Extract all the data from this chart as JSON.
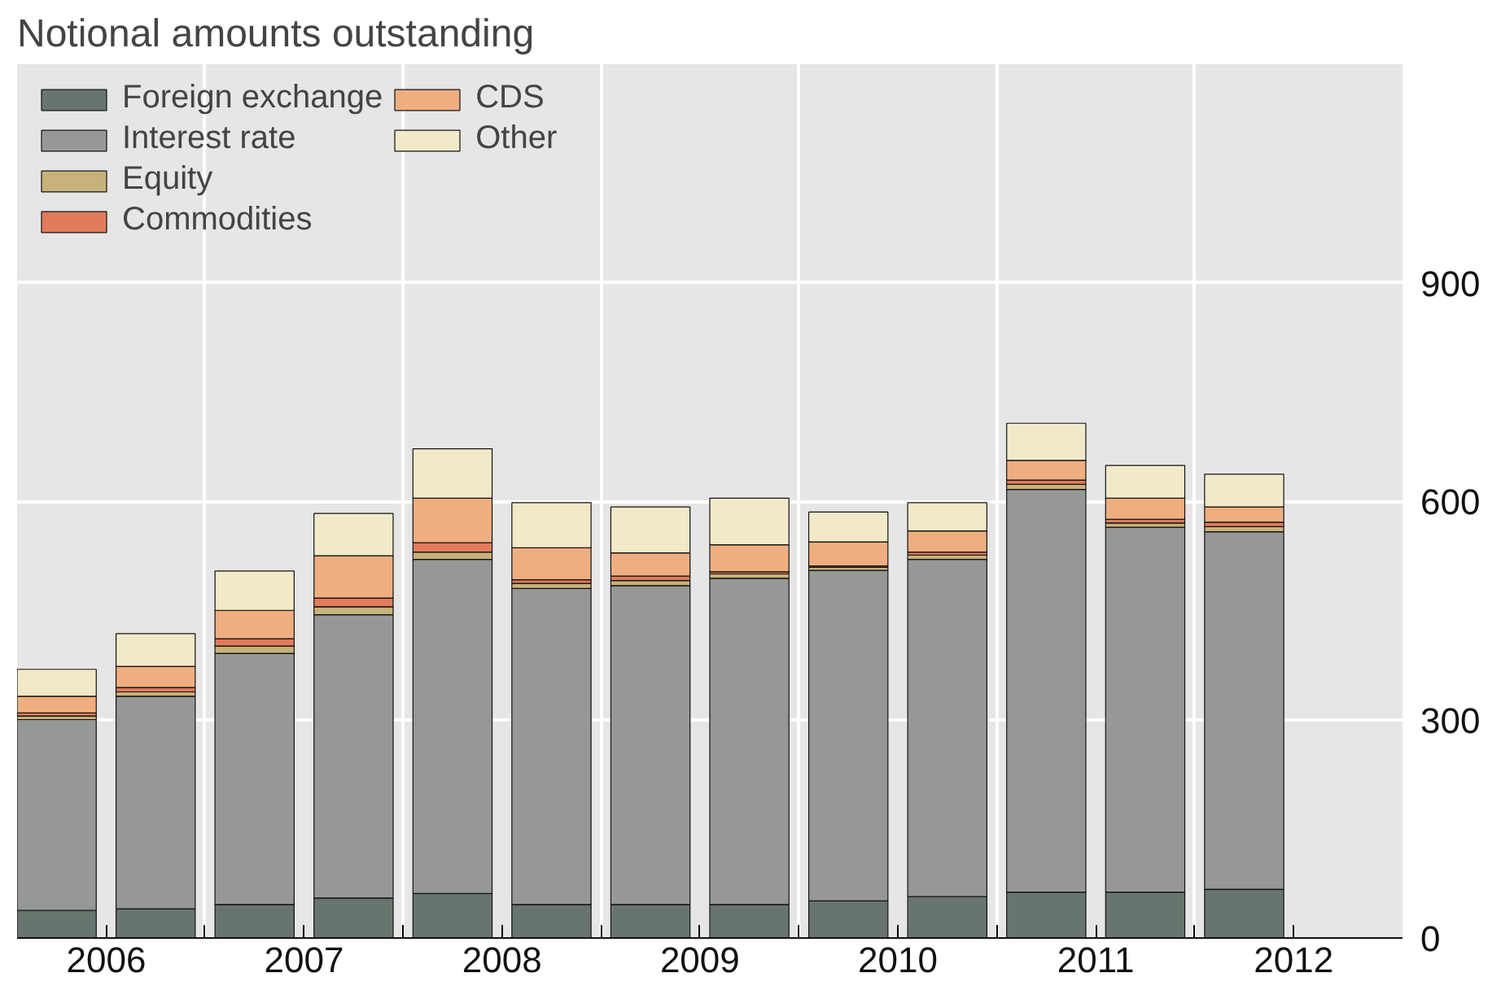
{
  "chart_data": {
    "type": "bar",
    "title": "Notional amounts outstanding",
    "stacked": true,
    "x": [
      2006.25,
      2006.75,
      2007.25,
      2007.75,
      2008.25,
      2008.75,
      2009.25,
      2009.75,
      2010.25,
      2010.75,
      2011.25,
      2011.75,
      2012.25
    ],
    "series": [
      {
        "name": "Foreign exchange",
        "color": "#68756e",
        "values": [
          38,
          40,
          46,
          55,
          61,
          46,
          46,
          46,
          51,
          57,
          63,
          63,
          67
        ]
      },
      {
        "name": "Interest rate",
        "color": "#969896",
        "values": [
          262,
          292,
          345,
          389,
          459,
          434,
          438,
          448,
          454,
          463,
          553,
          501,
          491
        ]
      },
      {
        "name": "Equity",
        "color": "#c8b27a",
        "values": [
          5,
          6,
          10,
          11,
          10,
          7,
          7,
          6,
          4,
          6,
          7,
          6,
          7
        ]
      },
      {
        "name": "Commodities",
        "color": "#e07b5b",
        "values": [
          4,
          6,
          10,
          12,
          13,
          5,
          6,
          3,
          2,
          4,
          6,
          5,
          6
        ]
      },
      {
        "name": "CDS",
        "color": "#eeae80",
        "values": [
          23,
          29,
          39,
          58,
          61,
          44,
          32,
          37,
          33,
          29,
          27,
          29,
          21
        ]
      },
      {
        "name": "Other",
        "color": "#f2e9c8",
        "values": [
          37,
          45,
          54,
          58,
          68,
          62,
          63,
          64,
          41,
          39,
          51,
          45,
          45
        ]
      }
    ],
    "xlim": [
      2006.05,
      2013.05
    ],
    "xticks": [
      {
        "value": 2006.5,
        "label": "2006"
      },
      {
        "value": 2007,
        "label": null
      },
      {
        "value": 2007.5,
        "label": "2007"
      },
      {
        "value": 2008,
        "label": null
      },
      {
        "value": 2008.5,
        "label": "2008"
      },
      {
        "value": 2009,
        "label": null
      },
      {
        "value": 2009.5,
        "label": "2009"
      },
      {
        "value": 2010,
        "label": null
      },
      {
        "value": 2010.5,
        "label": "2010"
      },
      {
        "value": 2011,
        "label": null
      },
      {
        "value": 2011.5,
        "label": "2011"
      },
      {
        "value": 2012,
        "label": null
      },
      {
        "value": 2012.5,
        "label": "2012"
      }
    ],
    "ylim": [
      0,
      1200
    ],
    "yticks": [
      0,
      300,
      600,
      900
    ],
    "grid": true,
    "legend": "top left"
  }
}
